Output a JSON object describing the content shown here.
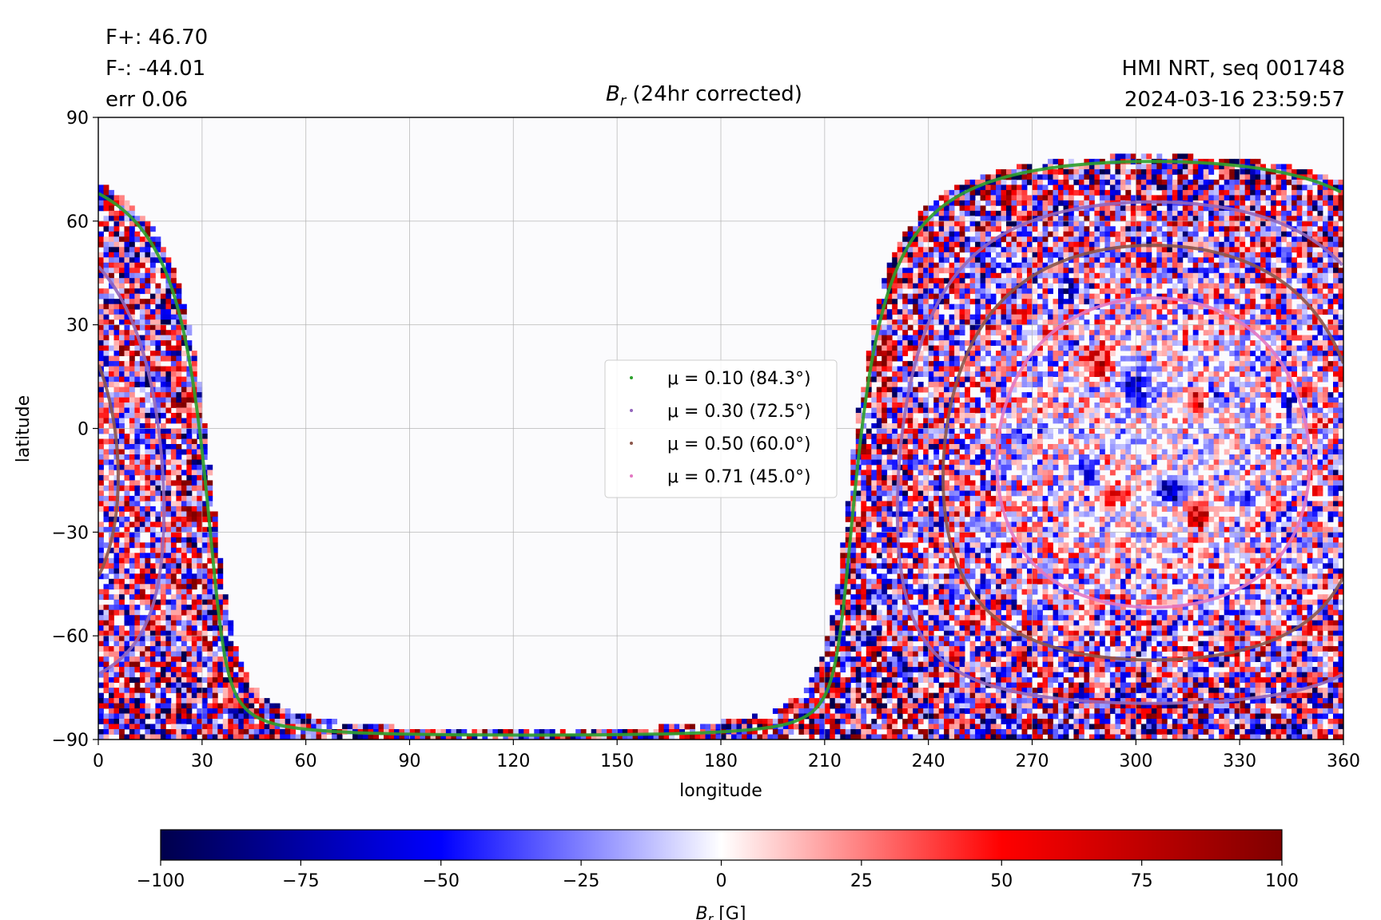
{
  "header": {
    "flux_plus": "F+: 46.70",
    "flux_minus": "F-: -44.01",
    "error": "err 0.06",
    "source": "HMI NRT, seq 001748",
    "timestamp": "2024-03-16 23:59:57",
    "title_symbol": "B",
    "title_sub": "r",
    "title_rest": " (24hr corrected)"
  },
  "chart_data": {
    "type": "heatmap",
    "title": "B_r (24hr corrected)",
    "xlabel": "longitude",
    "ylabel": "latitude",
    "xlim": [
      0,
      360
    ],
    "ylim": [
      -90,
      90
    ],
    "xticks": [
      0,
      30,
      60,
      90,
      120,
      150,
      180,
      210,
      240,
      270,
      300,
      330,
      360
    ],
    "yticks": [
      -90,
      -60,
      -30,
      0,
      30,
      60,
      90
    ],
    "xtick_labels": [
      "0",
      "30",
      "60",
      "90",
      "120",
      "150",
      "180",
      "210",
      "240",
      "270",
      "300",
      "330",
      "360"
    ],
    "ytick_labels": [
      "−90",
      "−60",
      "−30",
      "0",
      "30",
      "60",
      "90"
    ],
    "grid": true,
    "disk_center": {
      "lon": 305,
      "lat": -7
    },
    "colorbar": {
      "label_symbol": "B",
      "label_sub": "r",
      "label_unit": " [G]",
      "range": [
        -100,
        100
      ],
      "ticks": [
        -100,
        -75,
        -50,
        -25,
        0,
        25,
        50,
        75,
        100
      ],
      "tick_labels": [
        "−100",
        "−75",
        "−50",
        "−25",
        "0",
        "25",
        "50",
        "75",
        "100"
      ],
      "colors": [
        "#00004c",
        "#0000ff",
        "#ffffff",
        "#ff0000",
        "#800000"
      ]
    },
    "series": [
      {
        "name": "μ = 0.10 (84.3°)",
        "mu": 0.1,
        "angle_deg": 84.3,
        "color": "#2ca02c"
      },
      {
        "name": "μ = 0.30 (72.5°)",
        "mu": 0.3,
        "angle_deg": 72.5,
        "color": "#9467bd"
      },
      {
        "name": "μ = 0.50 (60.0°)",
        "mu": 0.5,
        "angle_deg": 60.0,
        "color": "#8c564b"
      },
      {
        "name": "μ = 0.71 (45.0°)",
        "mu": 0.71,
        "angle_deg": 45.0,
        "color": "#e377c2"
      }
    ],
    "legend_position": "center"
  }
}
